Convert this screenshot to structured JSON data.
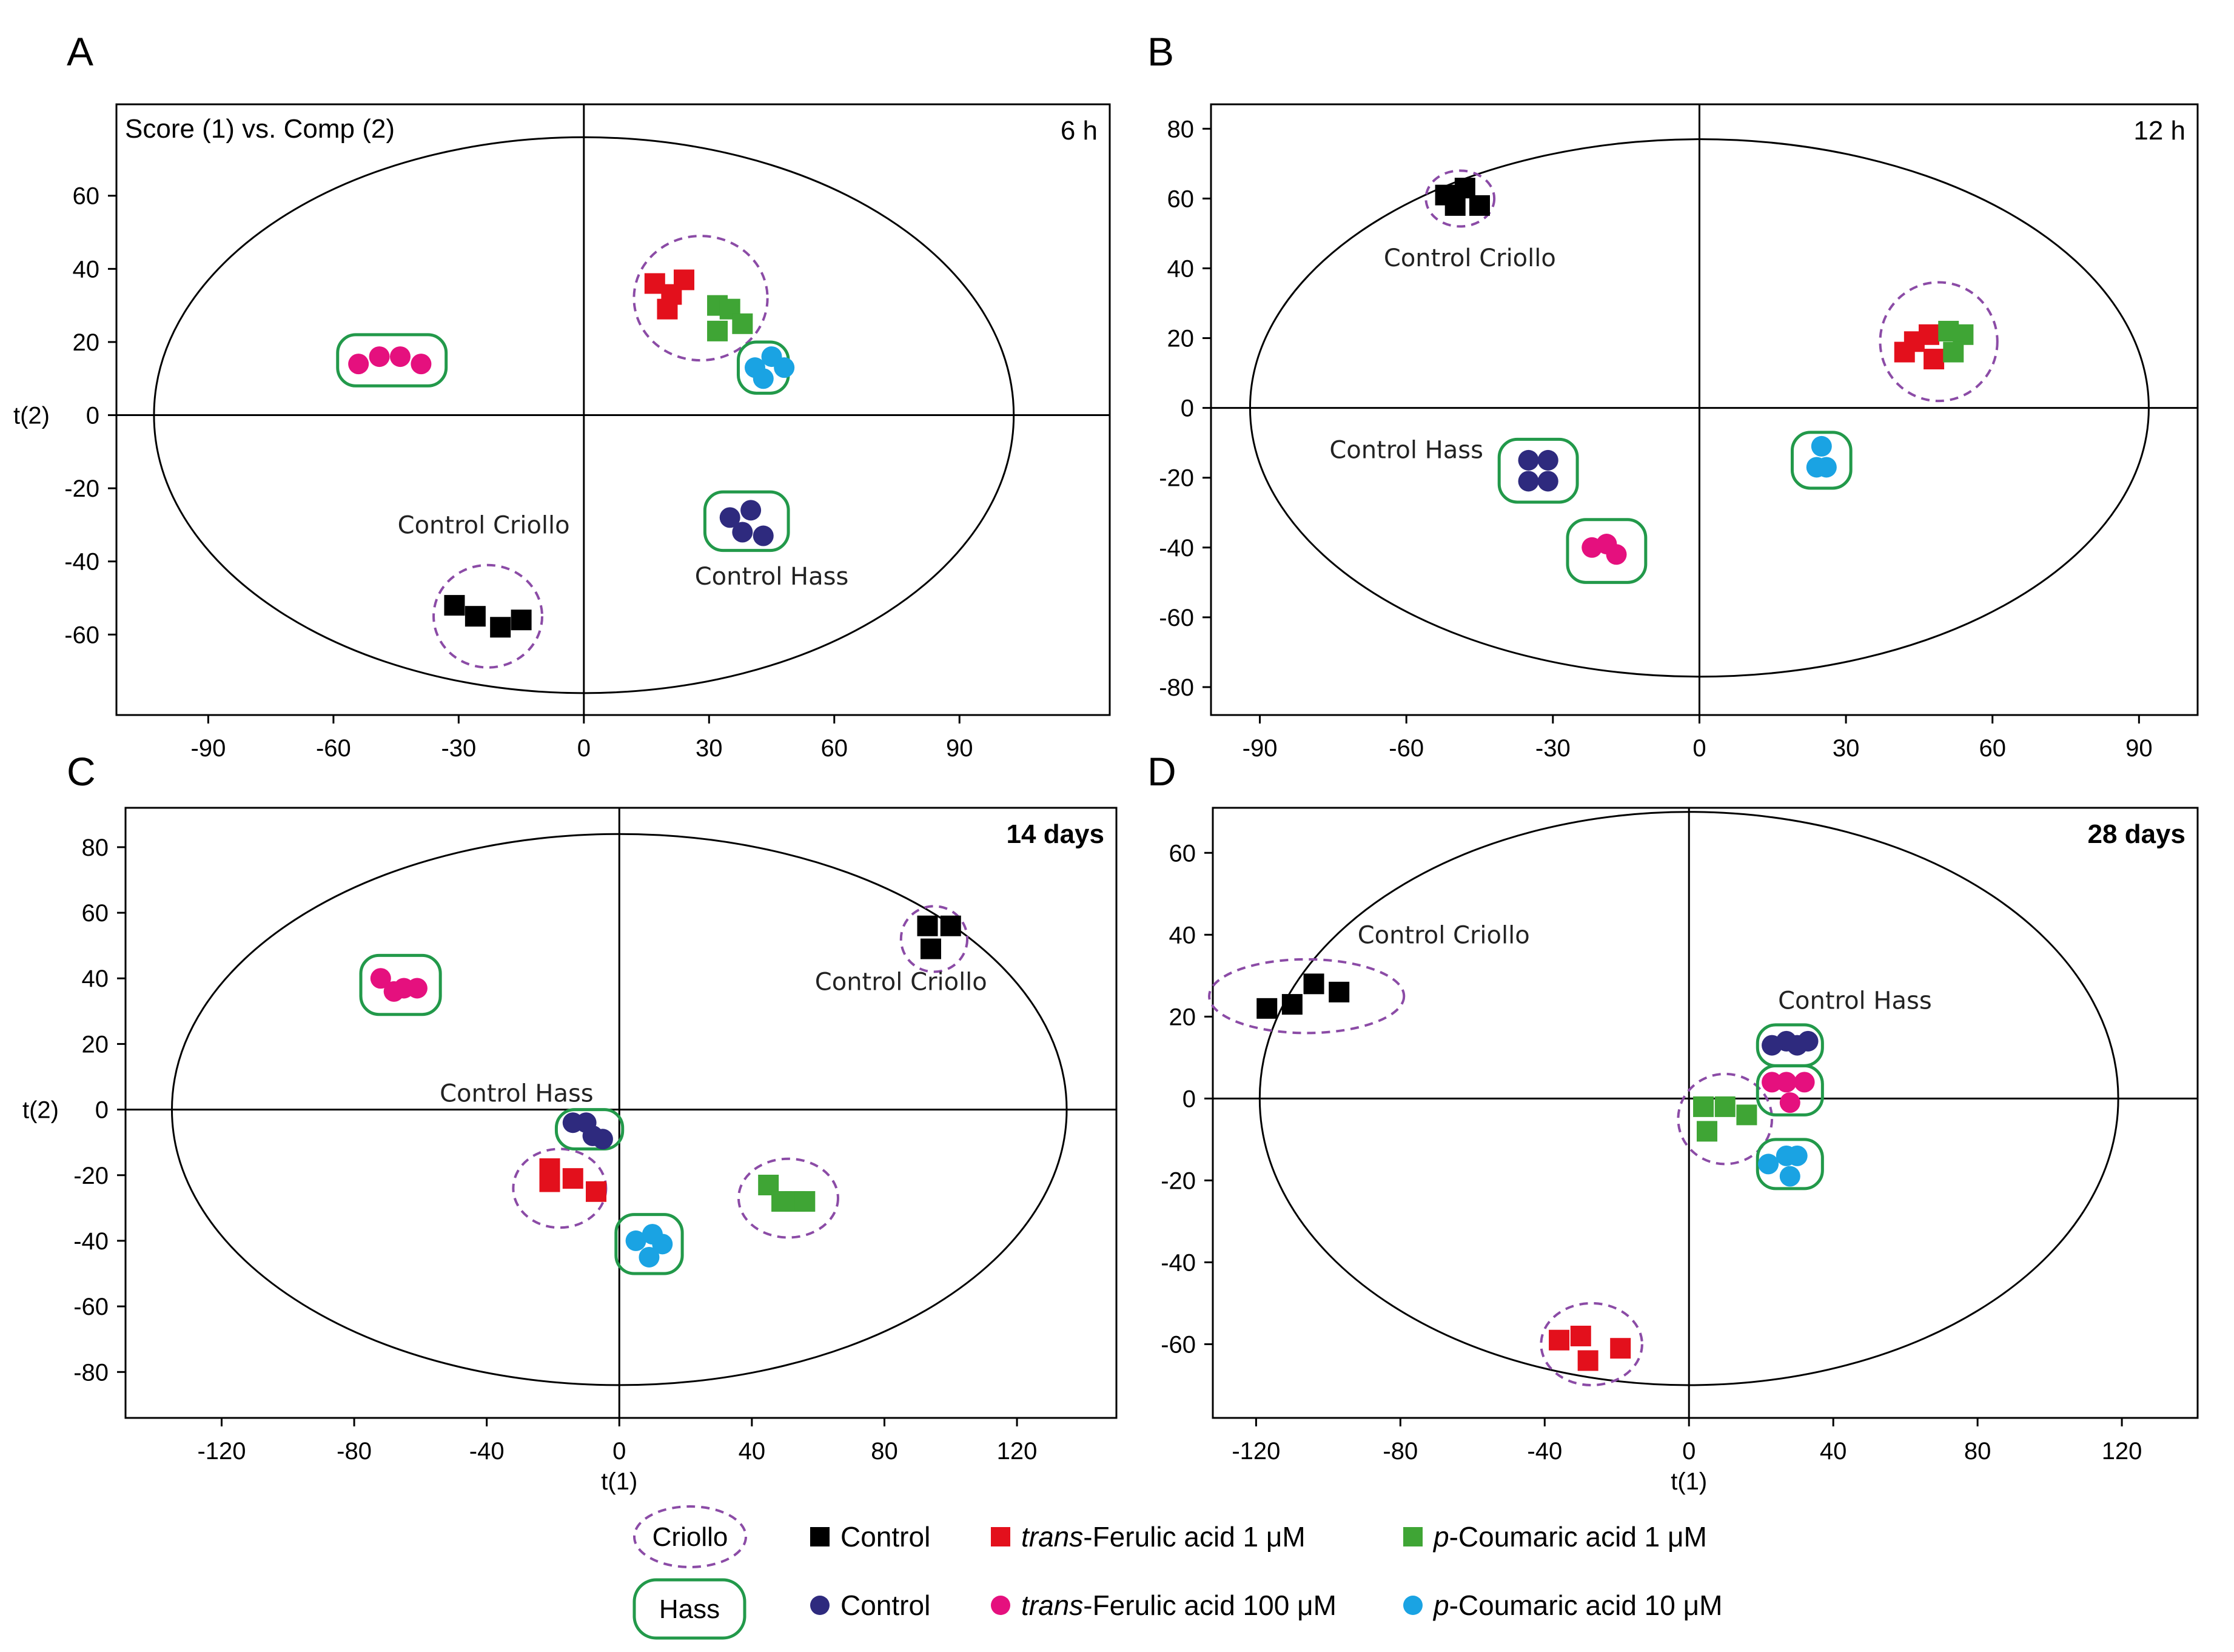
{
  "colors": {
    "control_criollo": "#000000",
    "control_hass": "#2e2a7e",
    "ferulic_1": "#e3101c",
    "ferulic_100": "#e5107e",
    "coumaric_1": "#3fa535",
    "coumaric_10": "#1aa3e3",
    "criollo_ring": "#8b4ba6",
    "hass_ring": "#22994a"
  },
  "chart_data": [
    {
      "type": "scatter",
      "panel_letter": "A",
      "title": "Score (1) vs. Comp (2)",
      "time": "6 h",
      "xlabel": "",
      "ylabel": "t(2)",
      "xlim": [
        -112,
        126
      ],
      "ylim": [
        -82,
        85
      ],
      "xticks": [
        -90,
        -60,
        -30,
        0,
        30,
        60,
        90
      ],
      "yticks": [
        -60,
        -40,
        -20,
        0,
        20,
        40,
        60
      ],
      "ellipse": {
        "rx": 103,
        "ry": 76
      },
      "series": [
        {
          "name": "Control Criollo",
          "marker": "square",
          "color_key": "control_criollo",
          "points": [
            [
              -31,
              -52
            ],
            [
              -26,
              -55
            ],
            [
              -20,
              -58
            ],
            [
              -15,
              -56
            ]
          ]
        },
        {
          "name": "trans-Ferulic acid 1 µM",
          "marker": "square",
          "color_key": "ferulic_1",
          "points": [
            [
              17,
              36
            ],
            [
              24,
              37
            ],
            [
              21,
              33
            ],
            [
              20,
              29
            ]
          ]
        },
        {
          "name": "p-Coumaric acid 1 µM",
          "marker": "square",
          "color_key": "coumaric_1",
          "points": [
            [
              32,
              30
            ],
            [
              35,
              29
            ],
            [
              38,
              25
            ],
            [
              32,
              23
            ]
          ]
        },
        {
          "name": "Control Hass",
          "marker": "circle",
          "color_key": "control_hass",
          "points": [
            [
              35,
              -28
            ],
            [
              40,
              -26
            ],
            [
              38,
              -32
            ],
            [
              43,
              -33
            ]
          ]
        },
        {
          "name": "trans-Ferulic acid 100 µM",
          "marker": "circle",
          "color_key": "ferulic_100",
          "points": [
            [
              -54,
              14
            ],
            [
              -49,
              16
            ],
            [
              -44,
              16
            ],
            [
              -39,
              14
            ]
          ]
        },
        {
          "name": "p-Coumaric acid 10 µM",
          "marker": "circle",
          "color_key": "coumaric_10",
          "points": [
            [
              41,
              13
            ],
            [
              45,
              16
            ],
            [
              48,
              13
            ],
            [
              43,
              10
            ]
          ]
        }
      ],
      "groups": [
        {
          "ring": "criollo",
          "center": [
            -23,
            -55
          ],
          "radii": [
            13,
            14
          ]
        },
        {
          "ring": "criollo",
          "center": [
            28,
            32
          ],
          "radii": [
            16,
            17
          ]
        },
        {
          "ring": "hass",
          "center": [
            -46,
            15
          ],
          "radii": [
            13,
            7
          ]
        },
        {
          "ring": "hass",
          "center": [
            43,
            13
          ],
          "radii": [
            6,
            7
          ]
        },
        {
          "ring": "hass",
          "center": [
            39,
            -29
          ],
          "radii": [
            10,
            8
          ]
        }
      ],
      "annotations": [
        {
          "text": "Control Criollo",
          "x": -24,
          "y": -30
        },
        {
          "text": "Control Hass",
          "x": 45,
          "y": -44
        }
      ]
    },
    {
      "type": "scatter",
      "panel_letter": "B",
      "time": "12 h",
      "xlabel": "",
      "ylabel": "",
      "xlim": [
        -100,
        102
      ],
      "ylim": [
        -88,
        87
      ],
      "xticks": [
        -90,
        -60,
        -30,
        0,
        30,
        60,
        90
      ],
      "yticks": [
        -80,
        -60,
        -40,
        -20,
        0,
        20,
        40,
        60,
        80
      ],
      "ellipse": {
        "rx": 92,
        "ry": 77
      },
      "series": [
        {
          "name": "Control Criollo",
          "marker": "square",
          "color_key": "control_criollo",
          "points": [
            [
              -52,
              61
            ],
            [
              -48,
              63
            ],
            [
              -50,
              58
            ],
            [
              -45,
              58
            ]
          ]
        },
        {
          "name": "trans-Ferulic acid 1 µM",
          "marker": "square",
          "color_key": "ferulic_1",
          "points": [
            [
              42,
              16
            ],
            [
              44,
              19
            ],
            [
              47,
              21
            ],
            [
              48,
              14
            ]
          ]
        },
        {
          "name": "p-Coumaric acid 1 µM",
          "marker": "square",
          "color_key": "coumaric_1",
          "points": [
            [
              51,
              22
            ],
            [
              54,
              21
            ],
            [
              52,
              16
            ]
          ]
        },
        {
          "name": "Control Hass",
          "marker": "circle",
          "color_key": "control_hass",
          "points": [
            [
              -35,
              -15
            ],
            [
              -31,
              -15
            ],
            [
              -35,
              -21
            ],
            [
              -31,
              -21
            ]
          ]
        },
        {
          "name": "trans-Ferulic acid 100 µM",
          "marker": "circle",
          "color_key": "ferulic_100",
          "points": [
            [
              -22,
              -40
            ],
            [
              -19,
              -39
            ],
            [
              -17,
              -42
            ]
          ]
        },
        {
          "name": "p-Coumaric acid 10 µM",
          "marker": "circle",
          "color_key": "coumaric_10",
          "points": [
            [
              25,
              -11
            ],
            [
              24,
              -17
            ],
            [
              26,
              -17
            ]
          ]
        }
      ],
      "groups": [
        {
          "ring": "criollo",
          "center": [
            -49,
            60
          ],
          "radii": [
            7,
            8
          ]
        },
        {
          "ring": "criollo",
          "center": [
            49,
            19
          ],
          "radii": [
            12,
            17
          ]
        },
        {
          "ring": "hass",
          "center": [
            -33,
            -18
          ],
          "radii": [
            8,
            9
          ]
        },
        {
          "ring": "hass",
          "center": [
            -19,
            -41
          ],
          "radii": [
            8,
            9
          ]
        },
        {
          "ring": "hass",
          "center": [
            25,
            -15
          ],
          "radii": [
            6,
            8
          ]
        }
      ],
      "annotations": [
        {
          "text": "Control Criollo",
          "x": -47,
          "y": 43
        },
        {
          "text": "Control Hass",
          "x": -60,
          "y": -12
        }
      ]
    },
    {
      "type": "scatter",
      "panel_letter": "C",
      "time": "14 days",
      "xlabel": "t(1)",
      "ylabel": "t(2)",
      "xlim": [
        -149,
        150
      ],
      "ylim": [
        -94,
        92
      ],
      "xticks": [
        -120,
        -80,
        -40,
        0,
        40,
        80,
        120
      ],
      "yticks": [
        -80,
        -60,
        -40,
        -20,
        0,
        20,
        40,
        60,
        80
      ],
      "ellipse": {
        "rx": 135,
        "ry": 84
      },
      "series": [
        {
          "name": "Control Criollo",
          "marker": "square",
          "color_key": "control_criollo",
          "points": [
            [
              93,
              56
            ],
            [
              100,
              56
            ],
            [
              94,
              49
            ]
          ]
        },
        {
          "name": "trans-Ferulic acid 1 µM",
          "marker": "square",
          "color_key": "ferulic_1",
          "points": [
            [
              -21,
              -18
            ],
            [
              -21,
              -22
            ],
            [
              -14,
              -21
            ],
            [
              -7,
              -25
            ]
          ]
        },
        {
          "name": "p-Coumaric acid 1 µM",
          "marker": "square",
          "color_key": "coumaric_1",
          "points": [
            [
              45,
              -23
            ],
            [
              49,
              -28
            ],
            [
              53,
              -28
            ],
            [
              56,
              -28
            ]
          ]
        },
        {
          "name": "Control Hass",
          "marker": "circle",
          "color_key": "control_hass",
          "points": [
            [
              -14,
              -4
            ],
            [
              -10,
              -4
            ],
            [
              -8,
              -8
            ],
            [
              -5,
              -9
            ]
          ]
        },
        {
          "name": "trans-Ferulic acid 100 µM",
          "marker": "circle",
          "color_key": "ferulic_100",
          "points": [
            [
              -72,
              40
            ],
            [
              -68,
              36
            ],
            [
              -65,
              37
            ],
            [
              -61,
              37
            ]
          ]
        },
        {
          "name": "p-Coumaric acid 10 µM",
          "marker": "circle",
          "color_key": "coumaric_10",
          "points": [
            [
              5,
              -40
            ],
            [
              10,
              -38
            ],
            [
              13,
              -41
            ],
            [
              9,
              -45
            ]
          ]
        }
      ],
      "groups": [
        {
          "ring": "criollo",
          "center": [
            95,
            52
          ],
          "radii": [
            10,
            10
          ]
        },
        {
          "ring": "criollo",
          "center": [
            -18,
            -24
          ],
          "radii": [
            14,
            12
          ]
        },
        {
          "ring": "criollo",
          "center": [
            51,
            -27
          ],
          "radii": [
            15,
            12
          ]
        },
        {
          "ring": "hass",
          "center": [
            -66,
            38
          ],
          "radii": [
            12,
            9
          ]
        },
        {
          "ring": "hass",
          "center": [
            -9,
            -6
          ],
          "radii": [
            10,
            6
          ]
        },
        {
          "ring": "hass",
          "center": [
            9,
            -41
          ],
          "radii": [
            10,
            9
          ]
        }
      ],
      "annotations": [
        {
          "text": "Control Criollo",
          "x": 85,
          "y": 39
        },
        {
          "text": "Control Hass",
          "x": -31,
          "y": 5
        }
      ]
    },
    {
      "type": "scatter",
      "panel_letter": "D",
      "time": "28 days",
      "xlabel": "t(1)",
      "ylabel": "",
      "xlim": [
        -132,
        141
      ],
      "ylim": [
        -78,
        71
      ],
      "xticks": [
        -120,
        -80,
        -40,
        0,
        40,
        80,
        120
      ],
      "yticks": [
        -60,
        -40,
        -20,
        0,
        20,
        40,
        60
      ],
      "ellipse": {
        "rx": 119,
        "ry": 70
      },
      "series": [
        {
          "name": "Control Criollo",
          "marker": "square",
          "color_key": "control_criollo",
          "points": [
            [
              -117,
              22
            ],
            [
              -110,
              23
            ],
            [
              -104,
              28
            ],
            [
              -97,
              26
            ]
          ]
        },
        {
          "name": "trans-Ferulic acid 1 µM",
          "marker": "square",
          "color_key": "ferulic_1",
          "points": [
            [
              -36,
              -59
            ],
            [
              -30,
              -58
            ],
            [
              -28,
              -64
            ],
            [
              -19,
              -61
            ]
          ]
        },
        {
          "name": "p-Coumaric acid 1 µM",
          "marker": "square",
          "color_key": "coumaric_1",
          "points": [
            [
              4,
              -2
            ],
            [
              10,
              -2
            ],
            [
              16,
              -4
            ],
            [
              5,
              -8
            ]
          ]
        },
        {
          "name": "Control Hass",
          "marker": "circle",
          "color_key": "control_hass",
          "points": [
            [
              23,
              13
            ],
            [
              27,
              14
            ],
            [
              30,
              13
            ],
            [
              33,
              14
            ]
          ]
        },
        {
          "name": "trans-Ferulic acid 100 µM",
          "marker": "circle",
          "color_key": "ferulic_100",
          "points": [
            [
              23,
              4
            ],
            [
              27,
              4
            ],
            [
              32,
              4
            ],
            [
              28,
              -1
            ]
          ]
        },
        {
          "name": "p-Coumaric acid 10 µM",
          "marker": "circle",
          "color_key": "coumaric_10",
          "points": [
            [
              22,
              -16
            ],
            [
              27,
              -14
            ],
            [
              30,
              -14
            ],
            [
              28,
              -19
            ]
          ]
        }
      ],
      "groups": [
        {
          "ring": "criollo",
          "center": [
            -106,
            25
          ],
          "radii": [
            27,
            9
          ]
        },
        {
          "ring": "criollo",
          "center": [
            -27,
            -60
          ],
          "radii": [
            14,
            10
          ]
        },
        {
          "ring": "criollo",
          "center": [
            10,
            -5
          ],
          "radii": [
            13,
            11
          ]
        },
        {
          "ring": "hass",
          "center": [
            28,
            13
          ],
          "radii": [
            9,
            5
          ]
        },
        {
          "ring": "hass",
          "center": [
            28,
            2
          ],
          "radii": [
            9,
            6
          ]
        },
        {
          "ring": "hass",
          "center": [
            28,
            -16
          ],
          "radii": [
            9,
            6
          ]
        }
      ],
      "annotations": [
        {
          "text": "Control Criollo",
          "x": -68,
          "y": 40
        },
        {
          "text": "Control Hass",
          "x": 46,
          "y": 24
        }
      ]
    }
  ],
  "legend": {
    "ring_criollo": "Criollo",
    "ring_hass": "Hass",
    "items": [
      {
        "text": "Control",
        "marker": "square",
        "color_key": "control_criollo"
      },
      {
        "prefix": "trans",
        "text": "-Ferulic acid 1 μM",
        "marker": "square",
        "color_key": "ferulic_1"
      },
      {
        "prefix": "p",
        "text": "-Coumaric acid 1 μM",
        "marker": "square",
        "color_key": "coumaric_1"
      },
      {
        "text": "Control",
        "marker": "circle",
        "color_key": "control_hass"
      },
      {
        "prefix": "trans",
        "text": "-Ferulic acid 100 μM",
        "marker": "circle",
        "color_key": "ferulic_100"
      },
      {
        "prefix": "p",
        "text": "-Coumaric acid 10 μM",
        "marker": "circle",
        "color_key": "coumaric_10"
      }
    ]
  }
}
